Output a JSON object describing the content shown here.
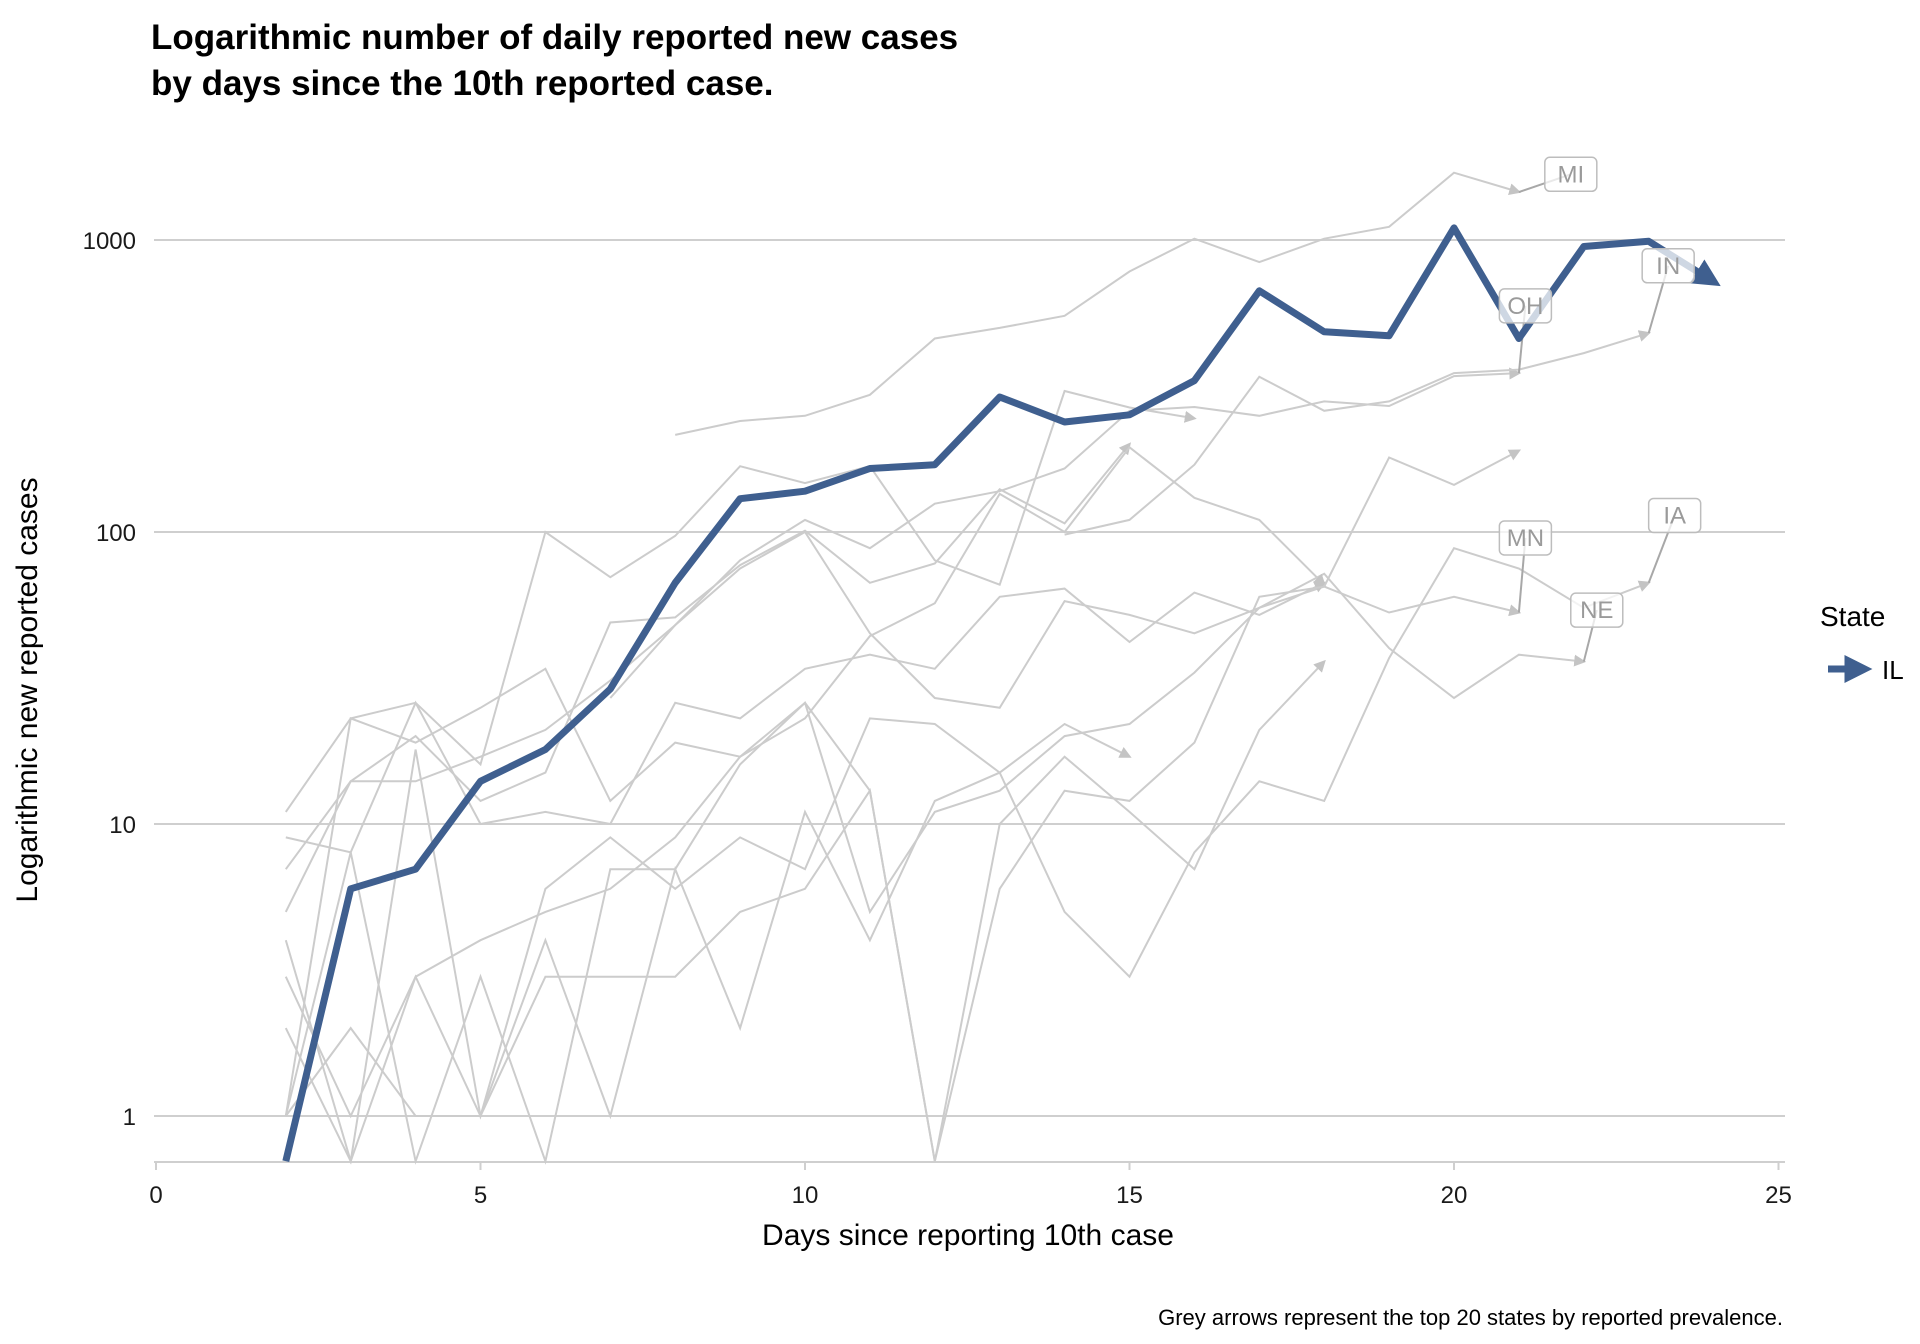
{
  "chart_data": {
    "type": "line",
    "title": "Logarithmic number of daily reported new cases\nby days since the 10th reported case.",
    "xlabel": "Days since reporting 10th case",
    "ylabel": "Logarithmic new reported cases",
    "caption": "Grey arrows represent the top 20 states by reported prevalence.",
    "x_scale": "linear",
    "y_scale": "log10",
    "xlim": [
      0,
      25
    ],
    "ylim": [
      0.7,
      2000
    ],
    "x_ticks": [
      0,
      5,
      10,
      15,
      20,
      25
    ],
    "y_ticks": [
      1,
      10,
      100,
      1000
    ],
    "grid": "horizontal major",
    "legend": {
      "title": "State",
      "position": "right",
      "entries": [
        {
          "label": "IL",
          "color": "#3f5f8f"
        }
      ]
    },
    "highlight_series": {
      "name": "IL",
      "color": "#3f5f8f",
      "x": [
        2,
        3,
        4,
        5,
        6,
        7,
        8,
        9,
        10,
        11,
        12,
        13,
        14,
        15,
        16,
        17,
        18,
        19,
        20,
        21,
        22,
        23,
        24
      ],
      "y": [
        0.7,
        6,
        7,
        14,
        18,
        29,
        67,
        130,
        138,
        165,
        170,
        290,
        238,
        252,
        330,
        670,
        485,
        470,
        1100,
        460,
        950,
        990,
        720
      ]
    },
    "background_series_color": "#cccccc",
    "background_series": [
      {
        "name": "MI",
        "x": [
          8,
          9,
          10,
          11,
          12,
          13,
          14,
          15,
          16,
          17,
          18,
          19,
          20,
          21
        ],
        "y": [
          215,
          240,
          250,
          295,
          460,
          500,
          550,
          780,
          1010,
          840,
          1010,
          1110,
          1700,
          1460
        ]
      },
      {
        "name": "OH",
        "x": [
          7,
          8,
          9,
          10,
          11,
          12,
          13,
          14,
          15,
          16,
          17,
          18,
          19,
          20,
          21
        ],
        "y": [
          27,
          48,
          80,
          110,
          88,
          125,
          138,
          165,
          260,
          268,
          250,
          280,
          270,
          342,
          350
        ]
      },
      {
        "name": "IN",
        "x": [
          14,
          15,
          16,
          17,
          18,
          19,
          20,
          21,
          22,
          23
        ],
        "y": [
          98,
          110,
          170,
          340,
          260,
          280,
          350,
          360,
          410,
          480
        ]
      },
      {
        "name": "MN",
        "x": [
          2,
          3,
          4,
          5,
          6,
          7,
          8,
          9,
          10,
          11,
          12,
          13,
          14,
          15,
          16,
          17,
          18,
          19,
          20,
          21
        ],
        "y": [
          7,
          14,
          14,
          17,
          21,
          31,
          48,
          75,
          100,
          45,
          27,
          25,
          58,
          52,
          45,
          55,
          65,
          53,
          60,
          53
        ]
      },
      {
        "name": "NE",
        "x": [
          2,
          3,
          4,
          5,
          6,
          7,
          8,
          9,
          10,
          11,
          12,
          13,
          14,
          15,
          16,
          17,
          18,
          19,
          20,
          21,
          22
        ],
        "y": [
          4,
          0.7,
          3,
          4,
          5,
          6,
          9,
          17,
          26,
          5,
          11,
          13,
          20,
          22,
          33,
          55,
          72,
          40,
          27,
          38,
          36
        ]
      },
      {
        "name": "IA",
        "x": [
          2,
          3,
          4,
          5,
          6,
          7,
          8,
          9,
          10,
          11,
          12,
          13,
          14,
          15,
          16,
          17,
          18,
          19,
          20,
          21,
          22,
          23
        ],
        "y": [
          3,
          1,
          3,
          1,
          6,
          9,
          6,
          9,
          7,
          23,
          22,
          15,
          5,
          3,
          8,
          14,
          12,
          37,
          88,
          75,
          55,
          67
        ]
      },
      {
        "name": "",
        "x": [
          2,
          3,
          4,
          5,
          6,
          7,
          8,
          9,
          10,
          11,
          12,
          13,
          14,
          15,
          16
        ],
        "y": [
          11,
          23,
          26,
          16,
          100,
          70,
          97,
          168,
          147,
          168,
          80,
          66,
          304,
          267,
          245
        ]
      },
      {
        "name": "",
        "x": [
          2,
          3,
          4,
          5,
          6,
          7,
          8,
          9,
          10,
          11,
          12,
          13,
          14,
          15,
          16,
          17,
          18
        ],
        "y": [
          9,
          8,
          26,
          10,
          11,
          10,
          26,
          23,
          34,
          38,
          34,
          60,
          64,
          42,
          62,
          52,
          67
        ]
      },
      {
        "name": "",
        "x": [
          2,
          3,
          4,
          5,
          6,
          7,
          8,
          9,
          10,
          11,
          12,
          13,
          14,
          15
        ],
        "y": [
          5,
          14,
          20,
          12,
          15,
          49,
          51,
          77,
          101,
          67,
          78,
          140,
          107,
          200
        ]
      },
      {
        "name": "",
        "x": [
          2,
          3,
          4,
          5,
          6,
          7,
          8,
          9,
          10,
          11,
          12,
          13,
          14,
          15,
          16,
          17,
          18
        ],
        "y": [
          1,
          23,
          19,
          25,
          34,
          12,
          19,
          17,
          23,
          44,
          57,
          135,
          100,
          195,
          131,
          110,
          66
        ]
      },
      {
        "name": "",
        "x": [
          2,
          3,
          4,
          5,
          6,
          7,
          8,
          9,
          10,
          11,
          12,
          13,
          14,
          15
        ],
        "y": [
          2,
          0.7,
          18,
          1,
          4,
          1,
          7,
          2,
          11,
          4,
          12,
          15,
          22,
          17
        ]
      },
      {
        "name": "",
        "x": [
          2,
          3,
          4,
          5,
          6,
          7,
          8,
          9,
          10,
          11,
          12,
          13,
          14,
          15,
          16,
          17,
          18
        ],
        "y": [
          1,
          8,
          0.7,
          3,
          0.7,
          7,
          7,
          16,
          26,
          13,
          0.7,
          10,
          17,
          11,
          7,
          21,
          36
        ]
      },
      {
        "name": "",
        "x": [
          2,
          3,
          4,
          5,
          6,
          7,
          8,
          9,
          10,
          11,
          12,
          13,
          14,
          15,
          16,
          17,
          18,
          19,
          20,
          21
        ],
        "y": [
          1,
          2,
          1,
          1,
          3,
          3,
          3,
          5,
          6,
          13,
          0.7,
          6,
          13,
          12,
          19,
          60,
          65,
          180,
          145,
          190
        ]
      }
    ],
    "state_labels": [
      "MI",
      "OH",
      "IN",
      "MN",
      "NE",
      "IA"
    ]
  }
}
